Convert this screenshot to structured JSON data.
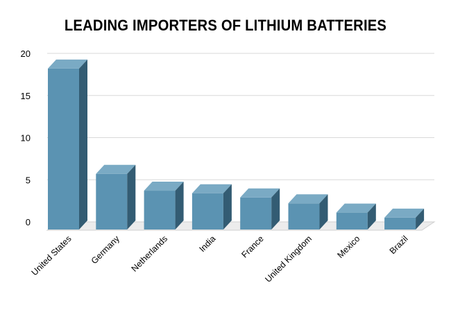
{
  "chart_data": {
    "type": "bar",
    "title": "LEADING IMPORTERS OF LITHIUM BATTERIES",
    "xlabel": "",
    "ylabel": "",
    "categories": [
      "United States",
      "Germany",
      "Netherlands",
      "India",
      "France",
      "United Kingdom",
      "Mexico",
      "Brazil"
    ],
    "values": [
      18.2,
      5.7,
      3.7,
      3.4,
      2.9,
      2.2,
      1.1,
      0.5
    ],
    "ylim": [
      0,
      20
    ],
    "yticks": [
      "0",
      "5",
      "10",
      "15",
      "20"
    ],
    "grid": true,
    "legend": "none",
    "style": "3d-columns"
  },
  "colors": {
    "bar_front": "#5b93b2",
    "bar_top": "#7aaac4",
    "bar_side": "#335c73",
    "grid": "#d9d9d9",
    "floor": "#cfcfcf"
  }
}
